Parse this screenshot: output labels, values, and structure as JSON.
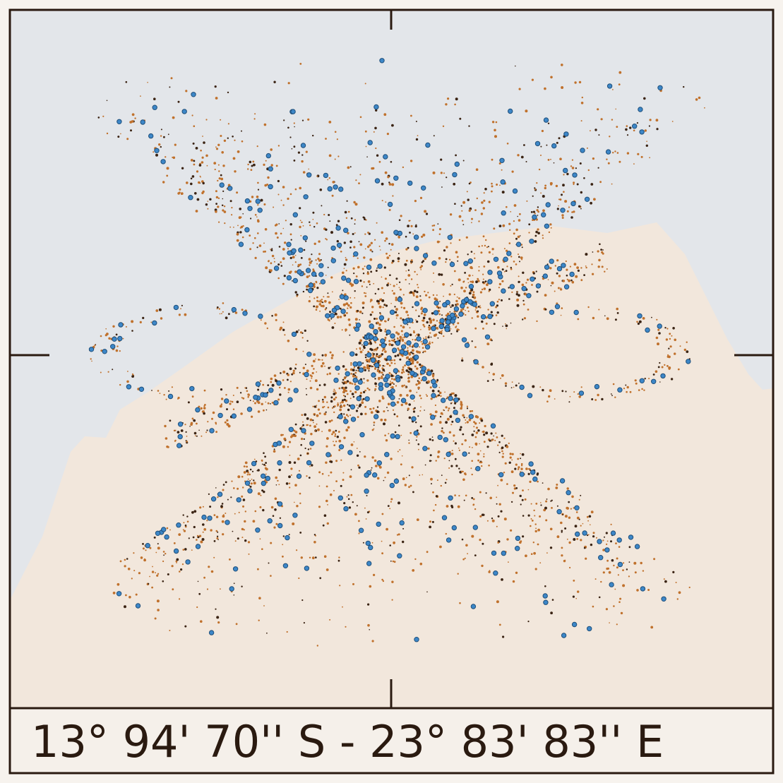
{
  "caption": "13° 94' 70'' S - 23° 83' 83'' E"
}
